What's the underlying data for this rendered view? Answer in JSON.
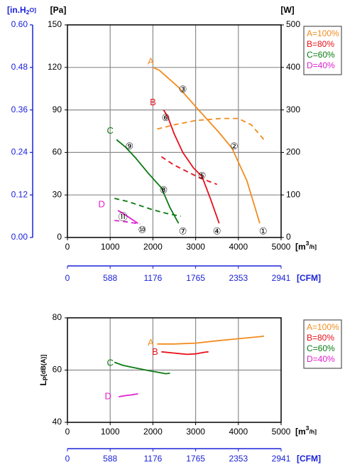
{
  "colors": {
    "A": "#f28c1e",
    "B": "#e8101a",
    "C": "#0a7a12",
    "D": "#e020d0",
    "blue": "#1a22d8",
    "black": "#000000",
    "grid": "#8c8c8c"
  },
  "chart_data": [
    {
      "type": "line",
      "y_left_label": "[Pa]",
      "y_left_outer_label": "[in.H2O]",
      "y_right_label": "[W]",
      "x_unit_label": "[m3/h]",
      "x_cfm_label": "[CFM]",
      "xlim": [
        0,
        5000
      ],
      "ylim_pa": [
        0,
        150
      ],
      "ylim_w": [
        0,
        500
      ],
      "ylim_inh2o": [
        0,
        0.6
      ],
      "x_ticks": [
        0,
        1000,
        2000,
        3000,
        4000,
        5000
      ],
      "y_ticks_pa": [
        0,
        30,
        60,
        90,
        120,
        150
      ],
      "y_ticks_w": [
        0,
        100,
        200,
        300,
        400,
        500
      ],
      "y_ticks_inh2o": [
        "0.00",
        "0.12",
        "0.24",
        "0.36",
        "0.48",
        "0.60"
      ],
      "cfm_ticks": [
        "0",
        "588",
        "1176",
        "1765",
        "2353",
        "2941"
      ],
      "grid": true,
      "legend": [
        "A=100%",
        "B=80%",
        "C=60%",
        "D=40%"
      ],
      "series": [
        {
          "name": "A",
          "kind": "pressure",
          "x": [
            2000,
            2150,
            2600,
            3100,
            3550,
            3850,
            4200,
            4400,
            4500
          ],
          "y": [
            120,
            118,
            106,
            89,
            74,
            63,
            40,
            20,
            10
          ]
        },
        {
          "name": "B",
          "kind": "pressure",
          "x": [
            2250,
            2350,
            2500,
            2700,
            2950,
            3150,
            3350,
            3550
          ],
          "y": [
            90,
            85,
            73,
            60,
            49,
            43,
            27,
            10
          ]
        },
        {
          "name": "C",
          "kind": "pressure",
          "x": [
            1150,
            1350,
            1600,
            1900,
            2200,
            2400,
            2600
          ],
          "y": [
            69,
            64,
            56,
            45,
            35,
            21,
            10
          ]
        },
        {
          "name": "D",
          "kind": "pressure",
          "x": [
            1180,
            1300,
            1400,
            1500,
            1650
          ],
          "y": [
            19,
            17,
            15,
            13,
            10
          ]
        },
        {
          "name": "A",
          "kind": "power",
          "x": [
            2100,
            2500,
            3000,
            3600,
            4000,
            4300,
            4600
          ],
          "y": [
            255,
            265,
            275,
            280,
            280,
            265,
            230
          ]
        },
        {
          "name": "B",
          "kind": "power",
          "x": [
            2200,
            2500,
            2800,
            3100,
            3500
          ],
          "y": [
            190,
            170,
            155,
            140,
            125
          ]
        },
        {
          "name": "C",
          "kind": "power",
          "x": [
            1100,
            1400,
            1700,
            2000,
            2300,
            2650
          ],
          "y": [
            92,
            85,
            75,
            65,
            57,
            50
          ]
        },
        {
          "name": "D",
          "kind": "power",
          "x": [
            1100,
            1300,
            1500,
            1700
          ],
          "y": [
            40,
            38,
            35,
            32
          ]
        }
      ],
      "curve_labels": [
        {
          "text": "A",
          "x": 1950,
          "y": 124
        },
        {
          "text": "B",
          "x": 2000,
          "y": 95
        },
        {
          "text": "C",
          "x": 1000,
          "y": 75
        },
        {
          "text": "D",
          "x": 800,
          "y": 23
        }
      ],
      "points": [
        {
          "num": "①",
          "x": 4580,
          "y": 4
        },
        {
          "num": "②",
          "x": 3900,
          "y": 64
        },
        {
          "num": "③",
          "x": 2700,
          "y": 104
        },
        {
          "num": "④",
          "x": 3500,
          "y": 4
        },
        {
          "num": "⑤",
          "x": 3150,
          "y": 43
        },
        {
          "num": "⑥",
          "x": 2300,
          "y": 84
        },
        {
          "num": "⑦",
          "x": 2700,
          "y": 4
        },
        {
          "num": "⑧",
          "x": 2250,
          "y": 33
        },
        {
          "num": "⑨",
          "x": 1450,
          "y": 64
        },
        {
          "num": "⑩",
          "x": 1750,
          "y": 5
        },
        {
          "num": "⑪",
          "x": 1300,
          "y": 14
        }
      ]
    },
    {
      "type": "line",
      "ylabel": "Lp[dB(A)]",
      "x_unit_label": "[m3/h]",
      "x_cfm_label": "[CFM]",
      "xlim": [
        0,
        5000
      ],
      "ylim": [
        40,
        80
      ],
      "x_ticks": [
        0,
        1000,
        2000,
        3000,
        4000,
        5000
      ],
      "y_ticks": [
        40,
        60,
        80
      ],
      "cfm_ticks": [
        "0",
        "588",
        "1176",
        "1765",
        "2353",
        "2941"
      ],
      "grid": true,
      "legend": [
        "A=100%",
        "B=80%",
        "C=60%",
        "D=40%"
      ],
      "series": [
        {
          "name": "A",
          "x": [
            2100,
            2500,
            3000,
            3500,
            4000,
            4500,
            4600
          ],
          "y": [
            70,
            70,
            70.3,
            71.2,
            72,
            72.8,
            73
          ]
        },
        {
          "name": "B",
          "x": [
            2200,
            2500,
            2800,
            3000,
            3200,
            3300
          ],
          "y": [
            67,
            66.5,
            66,
            66.2,
            66.8,
            67
          ]
        },
        {
          "name": "C",
          "x": [
            1100,
            1300,
            1600,
            1900,
            2100,
            2300,
            2400
          ],
          "y": [
            63,
            61.8,
            60.8,
            59.8,
            59.2,
            58.6,
            58.8
          ]
        },
        {
          "name": "D",
          "x": [
            1200,
            1350,
            1500,
            1650
          ],
          "y": [
            49.8,
            50.2,
            50.5,
            50.9
          ]
        }
      ],
      "curve_labels": [
        {
          "text": "A",
          "x": 1950,
          "y": 70.3
        },
        {
          "text": "B",
          "x": 2050,
          "y": 66.8
        },
        {
          "text": "C",
          "x": 1000,
          "y": 62.6
        },
        {
          "text": "D",
          "x": 950,
          "y": 49.8
        }
      ]
    }
  ]
}
